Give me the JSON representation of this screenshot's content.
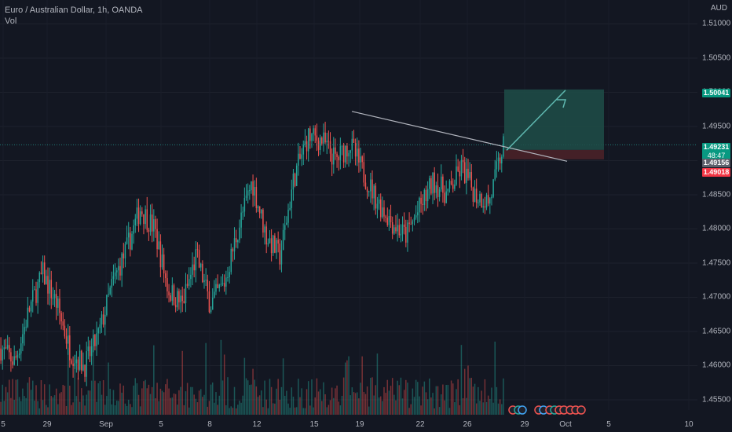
{
  "header": {
    "symbol": "Euro / Australian Dollar, 1h, OANDA",
    "volume_label": "Vol",
    "currency": "AUD"
  },
  "price_tags": {
    "target": "1.50041",
    "current": "1.49231",
    "countdown": "48:47",
    "entry": "1.49156",
    "stop": "1.49018"
  },
  "colors": {
    "background": "#131722",
    "up": "#26a69a",
    "down": "#ef5350",
    "target_zone": "#1e4e48",
    "stop_zone": "#4a2128",
    "trendline": "#b2b5be",
    "arrow": "#5fb8b0"
  },
  "chart_data": {
    "type": "candlestick",
    "yaxis": {
      "ticks": [
        "1.51000",
        "1.50500",
        "1.50000",
        "1.49500",
        "1.49000",
        "1.48500",
        "1.48000",
        "1.47500",
        "1.47000",
        "1.46500",
        "1.46000",
        "1.45500"
      ],
      "range": [
        1.4535,
        1.5135
      ]
    },
    "xaxis": {
      "ticks": [
        "5",
        "29",
        "Sep",
        "5",
        "8",
        "12",
        "15",
        "19",
        "22",
        "26",
        "29",
        "Oct",
        "5",
        "10"
      ]
    },
    "trend_line": {
      "from": 1.4972,
      "to": 1.4899
    },
    "position": {
      "target": 1.50041,
      "entry": 1.49156,
      "stop": 1.49018,
      "current": 1.49231
    },
    "price_path": [
      1.4625,
      1.4605,
      1.468,
      1.4735,
      1.469,
      1.462,
      1.46,
      1.4645,
      1.472,
      1.477,
      1.483,
      1.48,
      1.471,
      1.469,
      1.476,
      1.469,
      1.472,
      1.48,
      1.487,
      1.479,
      1.476,
      1.4875,
      1.4935,
      1.493,
      1.49,
      1.4925,
      1.488,
      1.484,
      1.481,
      1.479,
      1.483,
      1.487,
      1.485,
      1.489,
      1.485,
      1.484,
      1.4923
    ],
    "candle_count": 300
  }
}
